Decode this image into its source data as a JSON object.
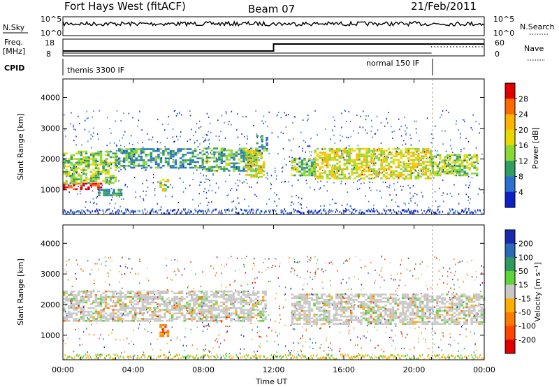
{
  "header": {
    "station": "Fort Hays West (fitACF)",
    "beam": "Beam 07",
    "date": "21/Feb/2011"
  },
  "status_panels": {
    "nsky_label": "N.Sky",
    "nsky_ticks": [
      "10^5",
      "10^0"
    ],
    "nsearch_label": "N.Search",
    "freq_label": "Freq.",
    "freq_unit": "[MHz]",
    "freq_ticks": [
      "18",
      "8"
    ],
    "nave_label": "Nave",
    "nave_ticks": [
      "60",
      "0"
    ],
    "cpid_label": "CPID",
    "cpid_left": "themis 3300 IF",
    "cpid_right": "normal 150 IF"
  },
  "chart_data": [
    {
      "type": "heatmap",
      "name": "power",
      "ylabel": "Slant Range [km]",
      "ylim": [
        200,
        4600
      ],
      "yticks": [
        1000,
        2000,
        3000,
        4000
      ],
      "xlim_hours": [
        0,
        24
      ],
      "colorbar_label": "Power [dB]",
      "colorbar_ticks": [
        "28",
        "24",
        "20",
        "16",
        "12",
        "8",
        "4"
      ],
      "colorbar_colors": [
        "#e00000",
        "#ff6a00",
        "#ffb400",
        "#e8d800",
        "#8ad836",
        "#2e9e63",
        "#2b6fd0",
        "#1020c8"
      ],
      "bands": [
        {
          "t0": 0.0,
          "t1": 2.2,
          "r0": 1050,
          "r1": 1250,
          "level": 0.95
        },
        {
          "t0": 0.0,
          "t1": 3.0,
          "r0": 1250,
          "r1": 2300,
          "level": 0.45
        },
        {
          "t0": 3.0,
          "t1": 8.0,
          "r0": 1750,
          "r1": 2400,
          "level": 0.3
        },
        {
          "t0": 8.0,
          "t1": 11.0,
          "r0": 1650,
          "r1": 2400,
          "level": 0.35
        },
        {
          "t0": 10.4,
          "t1": 11.4,
          "r0": 1450,
          "r1": 2300,
          "level": 0.55
        },
        {
          "t0": 11.0,
          "t1": 11.6,
          "r0": 2300,
          "r1": 2800,
          "level": 0.25
        },
        {
          "t0": 13.0,
          "t1": 14.3,
          "r0": 1500,
          "r1": 2100,
          "level": 0.4
        },
        {
          "t0": 14.3,
          "t1": 21.0,
          "r0": 1400,
          "r1": 2400,
          "level": 0.55
        },
        {
          "t0": 21.0,
          "t1": 23.6,
          "r0": 1500,
          "r1": 2200,
          "level": 0.45
        },
        {
          "t0": 5.5,
          "t1": 6.0,
          "r0": 1000,
          "r1": 1400,
          "level": 0.5
        },
        {
          "t0": 2.0,
          "t1": 3.4,
          "r0": 850,
          "r1": 1050,
          "level": 0.3
        }
      ]
    },
    {
      "type": "heatmap",
      "name": "velocity",
      "ylabel": "Slant Range [km]",
      "ylim": [
        200,
        4600
      ],
      "yticks": [
        1000,
        2000,
        3000,
        4000
      ],
      "xlim_hours": [
        0,
        24
      ],
      "xlabel": "Time UT",
      "xtick_labels": [
        "00:00",
        "04:00",
        "08:00",
        "12:00",
        "16:00",
        "20:00",
        "00:00"
      ],
      "colorbar_label": "Velocity [m s⁻¹]",
      "colorbar_ticks": [
        "200",
        "100",
        "50",
        "15",
        "-15",
        "-50",
        "-100",
        "-200"
      ],
      "colorbar_colors": [
        "#1a2ab0",
        "#2a6ab8",
        "#2f9a5e",
        "#5fd53a",
        "#c8c8c8",
        "#ffae00",
        "#ff7a00",
        "#ff4400",
        "#e00000"
      ],
      "bands": [
        {
          "t0": 0.0,
          "t1": 11.6,
          "r0": 1500,
          "r1": 2500,
          "level": 0.0
        },
        {
          "t0": 13.0,
          "t1": 24.0,
          "r0": 1400,
          "r1": 2400,
          "level": 0.0
        },
        {
          "t0": 5.5,
          "t1": 6.0,
          "r0": 1000,
          "r1": 1400,
          "level": -1.0
        }
      ]
    }
  ]
}
